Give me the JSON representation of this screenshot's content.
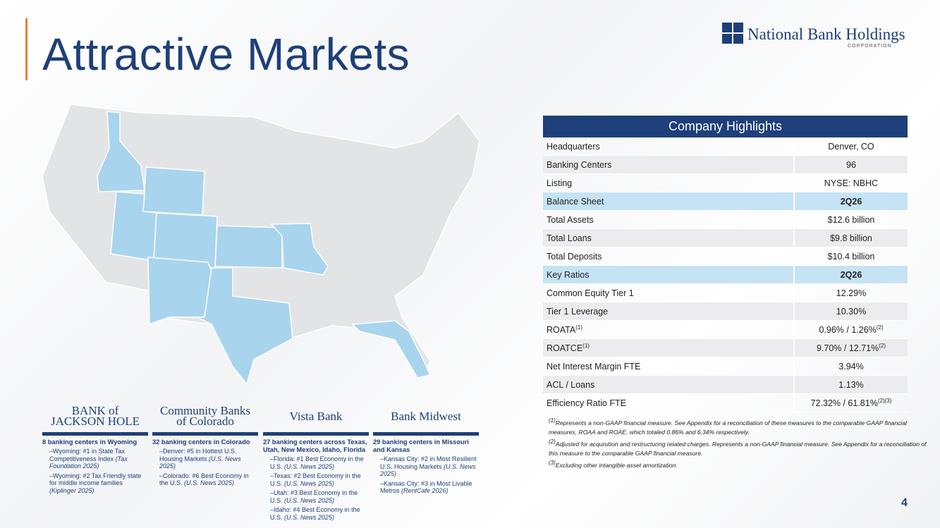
{
  "header": {
    "title": "Attractive Markets",
    "logo_name": "National Bank Holdings",
    "logo_sub": "CORPORATION"
  },
  "table": {
    "title": "Company Highlights",
    "rows": [
      [
        "Headquarters",
        "Denver, CO"
      ],
      [
        "Banking Centers",
        "96"
      ],
      [
        "Listing",
        "NYSE: NBHC"
      ]
    ],
    "sections": [
      {
        "header": [
          "Balance Sheet",
          "2Q26"
        ],
        "rows": [
          [
            "Total Assets",
            "$12.6 billion"
          ],
          [
            "Total Loans",
            "$9.8 billion"
          ],
          [
            "Total Deposits",
            "$10.4 billion"
          ]
        ]
      },
      {
        "header": [
          "Key Ratios",
          "2Q26"
        ],
        "rows": [
          {
            "label": "Common Equity Tier 1",
            "value": "12.29%"
          },
          {
            "label": "Tier 1 Leverage",
            "value": "10.30%"
          },
          {
            "label": "ROATA",
            "label_sup": "(1)",
            "value": "0.96% / 1.26%",
            "value_sup": "(2)"
          },
          {
            "label": "ROATCE",
            "label_sup": "(1)",
            "value": "9.70% / 12.71%",
            "value_sup": "(2)"
          },
          {
            "label": "Net Interest Margin FTE",
            "value": "3.94%"
          },
          {
            "label": "ACL / Loans",
            "value": "1.13%"
          },
          {
            "label": "Efficiency Ratio FTE",
            "value": "72.32% / 61.81%",
            "value_sup": "(2)(3)"
          }
        ]
      }
    ]
  },
  "footnotes": [
    {
      "sup": "(1)",
      "text": "Represents a non-GAAP financial measure. See Appendix for a reconciliation of these measures to the comparable GAAP financial measures, ROAA and ROAE, which totaled 0.86% and 6.34% respectively."
    },
    {
      "sup": "(2)",
      "text": "Adjusted for acquisition and restructuring related charges. Represents a non-GAAP financial measure. See Appendix for a reconciliation of this measure to the comparable GAAP financial measure."
    },
    {
      "sup": "(3)",
      "text": "Excluding other intangible asset amortization."
    }
  ],
  "banks": [
    {
      "logo": [
        "BANK of",
        "JACKSON HOLE"
      ],
      "heading": "8 banking centers in Wyoming",
      "bullets": [
        {
          "text": "Wyoming: #1 in State Tax Competitiveness Index",
          "source": "(Tax Foundation 2025)"
        },
        {
          "text": "Wyoming: #2 Tax Friendly state for middle income families",
          "source": "(Kiplinger 2025)"
        }
      ]
    },
    {
      "logo": [
        "Community Banks",
        "of Colorado"
      ],
      "heading": "32 banking centers in Colorado",
      "bullets": [
        {
          "text": "Denver: #5 in Hottest U.S. Housing Markets",
          "source": "(U.S. News 2025)"
        },
        {
          "text": "Colorado: #6 Best Economy in the U.S.",
          "source": "(U.S. News 2025)"
        }
      ]
    },
    {
      "logo": [
        "Vista Bank"
      ],
      "heading": "27 banking centers across Texas, Utah, New Mexico, Idaho, Florida",
      "bullets": [
        {
          "text": "Florida: #1 Best Economy in the U.S.",
          "source": "(U.S. News 2025)"
        },
        {
          "text": "Texas: #2 Best Economy in the U.S.",
          "source": "(U.S. News 2025)"
        },
        {
          "text": "Utah: #3 Best Economy in the U.S.",
          "source": "(U.S. News 2025)"
        },
        {
          "text": "Idaho: #4 Best Economy in the U.S.",
          "source": "(U.S. News 2025)"
        }
      ]
    },
    {
      "logo": [
        "Bank Midwest"
      ],
      "heading": "29 banking centers in Missouri and Kansas",
      "bullets": [
        {
          "text": "Kansas City: #2 in Most Resilient U.S. Housing Markets",
          "source": "(U.S. News 2025)"
        },
        {
          "text": "Kansas City: #3 in Most Livable Metros",
          "source": "(RentCafe 2026)"
        }
      ]
    }
  ],
  "page_number": "4"
}
